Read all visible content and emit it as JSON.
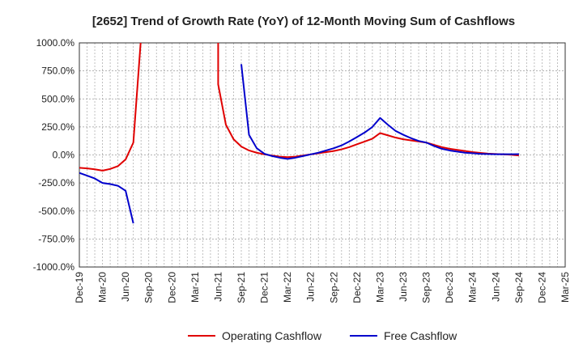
{
  "chart_data": {
    "type": "line",
    "title": "[2652]  Trend of Growth Rate (YoY) of 12-Month Moving Sum of Cashflows",
    "xlabel": "",
    "ylabel": "",
    "ylim": [
      -1000,
      1000
    ],
    "yticks": [
      1000,
      750,
      500,
      250,
      0,
      -250,
      -500,
      -750,
      -1000
    ],
    "ytick_labels": [
      "1000.0%",
      "750.0%",
      "500.0%",
      "250.0%",
      "0.0%",
      "-250.0%",
      "-500.0%",
      "-750.0%",
      "-1000.0%"
    ],
    "categories": [
      "Dec-19",
      "Jan-20",
      "Feb-20",
      "Mar-20",
      "Apr-20",
      "May-20",
      "Jun-20",
      "Jul-20",
      "Aug-20",
      "Sep-20",
      "Oct-20",
      "Nov-20",
      "Dec-20",
      "Jan-21",
      "Feb-21",
      "Mar-21",
      "Apr-21",
      "May-21",
      "Jun-21",
      "Jul-21",
      "Aug-21",
      "Sep-21",
      "Oct-21",
      "Nov-21",
      "Dec-21",
      "Jan-22",
      "Feb-22",
      "Mar-22",
      "Apr-22",
      "May-22",
      "Jun-22",
      "Jul-22",
      "Aug-22",
      "Sep-22",
      "Oct-22",
      "Nov-22",
      "Dec-22",
      "Jan-23",
      "Feb-23",
      "Mar-23",
      "Apr-23",
      "May-23",
      "Jun-23",
      "Jul-23",
      "Aug-23",
      "Sep-23",
      "Oct-23",
      "Nov-23",
      "Dec-23",
      "Jan-24",
      "Feb-24",
      "Mar-24",
      "Apr-24",
      "May-24",
      "Jun-24",
      "Jul-24",
      "Aug-24",
      "Sep-24",
      "Oct-24",
      "Nov-24",
      "Dec-24",
      "Jan-25",
      "Feb-25",
      "Mar-25"
    ],
    "xtick_labels": [
      "Dec-19",
      "Mar-20",
      "Jun-20",
      "Sep-20",
      "Dec-20",
      "Mar-21",
      "Jun-21",
      "Sep-21",
      "Dec-21",
      "Mar-22",
      "Jun-22",
      "Sep-22",
      "Dec-22",
      "Mar-23",
      "Jun-23",
      "Sep-23",
      "Dec-23",
      "Mar-24",
      "Jun-24",
      "Sep-24",
      "Dec-24",
      "Mar-25"
    ],
    "grid": true,
    "legend_position": "bottom",
    "series": [
      {
        "name": "Operating Cashflow",
        "color": "#e00000",
        "points": [
          [
            "Dec-19",
            -115
          ],
          [
            "Jan-20",
            -120
          ],
          [
            "Feb-20",
            -128
          ],
          [
            "Mar-20",
            -140
          ],
          [
            "Apr-20",
            -125
          ],
          [
            "May-20",
            -100
          ],
          [
            "Jun-20",
            -40
          ],
          [
            "Jul-20",
            110
          ],
          [
            "Aug-20",
            1050
          ],
          [
            null,
            null
          ],
          [
            "Jun-21",
            1050
          ],
          [
            "Jun-21",
            630
          ],
          [
            "Jul-21",
            270
          ],
          [
            "Aug-21",
            140
          ],
          [
            "Sep-21",
            75
          ],
          [
            "Oct-21",
            40
          ],
          [
            "Nov-21",
            20
          ],
          [
            "Dec-21",
            5
          ],
          [
            "Jan-22",
            -5
          ],
          [
            "Feb-22",
            -15
          ],
          [
            "Mar-22",
            -20
          ],
          [
            "Apr-22",
            -15
          ],
          [
            "May-22",
            -5
          ],
          [
            "Jun-22",
            5
          ],
          [
            "Jul-22",
            15
          ],
          [
            "Aug-22",
            25
          ],
          [
            "Sep-22",
            35
          ],
          [
            "Oct-22",
            50
          ],
          [
            "Nov-22",
            70
          ],
          [
            "Dec-22",
            95
          ],
          [
            "Jan-23",
            120
          ],
          [
            "Feb-23",
            145
          ],
          [
            "Mar-23",
            195
          ],
          [
            "Apr-23",
            175
          ],
          [
            "May-23",
            155
          ],
          [
            "Jun-23",
            140
          ],
          [
            "Jul-23",
            130
          ],
          [
            "Aug-23",
            120
          ],
          [
            "Sep-23",
            110
          ],
          [
            "Oct-23",
            90
          ],
          [
            "Nov-23",
            70
          ],
          [
            "Dec-23",
            55
          ],
          [
            "Jan-24",
            45
          ],
          [
            "Feb-24",
            35
          ],
          [
            "Mar-24",
            25
          ],
          [
            "Apr-24",
            18
          ],
          [
            "May-24",
            12
          ],
          [
            "Jun-24",
            8
          ],
          [
            "Jul-24",
            5
          ],
          [
            "Aug-24",
            2
          ],
          [
            "Sep-24",
            -5
          ]
        ]
      },
      {
        "name": "Free Cashflow",
        "color": "#0000cc",
        "points": [
          [
            "Dec-19",
            -160
          ],
          [
            "Jan-20",
            -185
          ],
          [
            "Feb-20",
            -210
          ],
          [
            "Mar-20",
            -250
          ],
          [
            "Apr-20",
            -260
          ],
          [
            "May-20",
            -275
          ],
          [
            "Jun-20",
            -320
          ],
          [
            "Jul-20",
            -610
          ],
          [
            null,
            null
          ],
          [
            "Sep-21",
            810
          ],
          [
            "Oct-21",
            180
          ],
          [
            "Nov-21",
            60
          ],
          [
            "Dec-21",
            10
          ],
          [
            "Jan-22",
            -10
          ],
          [
            "Feb-22",
            -25
          ],
          [
            "Mar-22",
            -35
          ],
          [
            "Apr-22",
            -25
          ],
          [
            "May-22",
            -10
          ],
          [
            "Jun-22",
            5
          ],
          [
            "Jul-22",
            20
          ],
          [
            "Aug-22",
            40
          ],
          [
            "Sep-22",
            60
          ],
          [
            "Oct-22",
            85
          ],
          [
            "Nov-22",
            120
          ],
          [
            "Dec-22",
            160
          ],
          [
            "Jan-23",
            200
          ],
          [
            "Feb-23",
            250
          ],
          [
            "Mar-23",
            330
          ],
          [
            "Apr-23",
            270
          ],
          [
            "May-23",
            215
          ],
          [
            "Jun-23",
            180
          ],
          [
            "Jul-23",
            150
          ],
          [
            "Aug-23",
            125
          ],
          [
            "Sep-23",
            110
          ],
          [
            "Oct-23",
            80
          ],
          [
            "Nov-23",
            55
          ],
          [
            "Dec-23",
            40
          ],
          [
            "Jan-24",
            30
          ],
          [
            "Feb-24",
            20
          ],
          [
            "Mar-24",
            15
          ],
          [
            "Apr-24",
            10
          ],
          [
            "May-24",
            8
          ],
          [
            "Jun-24",
            6
          ],
          [
            "Jul-24",
            6
          ],
          [
            "Aug-24",
            6
          ],
          [
            "Sep-24",
            7
          ]
        ]
      }
    ]
  }
}
